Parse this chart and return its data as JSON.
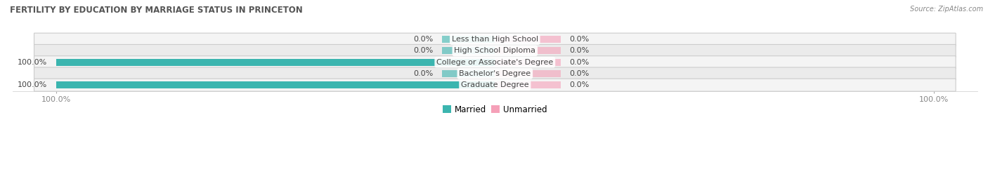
{
  "title": "FERTILITY BY EDUCATION BY MARRIAGE STATUS IN PRINCETON",
  "source": "Source: ZipAtlas.com",
  "categories": [
    "Less than High School",
    "High School Diploma",
    "College or Associate's Degree",
    "Bachelor's Degree",
    "Graduate Degree"
  ],
  "married": [
    0.0,
    0.0,
    100.0,
    0.0,
    100.0
  ],
  "unmarried": [
    0.0,
    0.0,
    0.0,
    0.0,
    0.0
  ],
  "married_color": "#3bb5af",
  "unmarried_color": "#f5a0b8",
  "label_color": "#444444",
  "title_color": "#555555",
  "source_color": "#888888",
  "legend_married": "Married",
  "legend_unmarried": "Unmarried",
  "stub_size": 12.0,
  "unmarried_fixed": 15.0,
  "row_colors": [
    "#f4f4f4",
    "#ebebeb"
  ]
}
